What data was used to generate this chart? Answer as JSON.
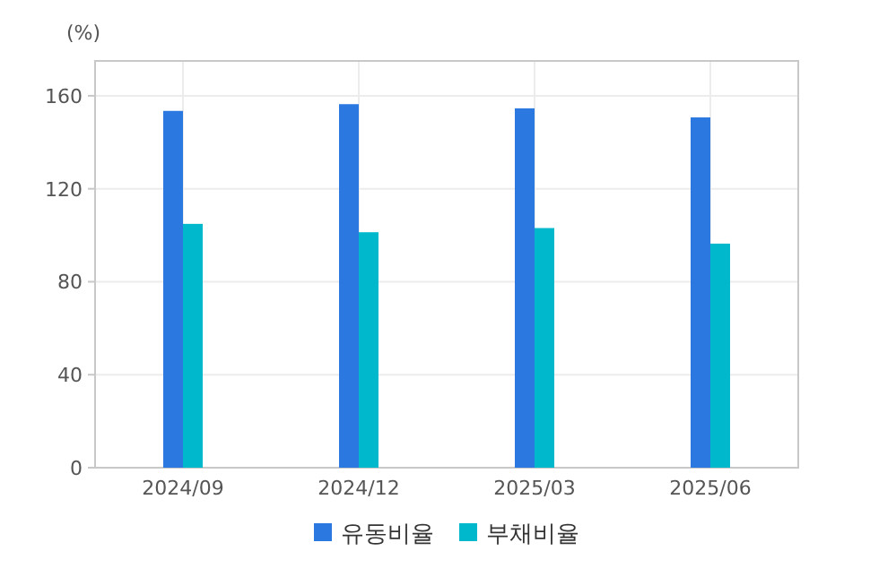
{
  "chart_data": {
    "type": "bar",
    "ylabel": "(%)",
    "categories": [
      "2024/09",
      "2024/12",
      "2025/03",
      "2025/06"
    ],
    "series": [
      {
        "name": "유동비율",
        "color": "#2b78e0",
        "values": [
          153.5,
          156.4,
          154.6,
          150.7
        ]
      },
      {
        "name": "부채비율",
        "color": "#00b8cc",
        "values": [
          104.9,
          101.3,
          103.1,
          96.4
        ]
      }
    ],
    "ylim": [
      0,
      175
    ],
    "yticks": [
      0,
      40,
      80,
      120,
      160
    ],
    "grid": true,
    "legend": "bottom"
  }
}
